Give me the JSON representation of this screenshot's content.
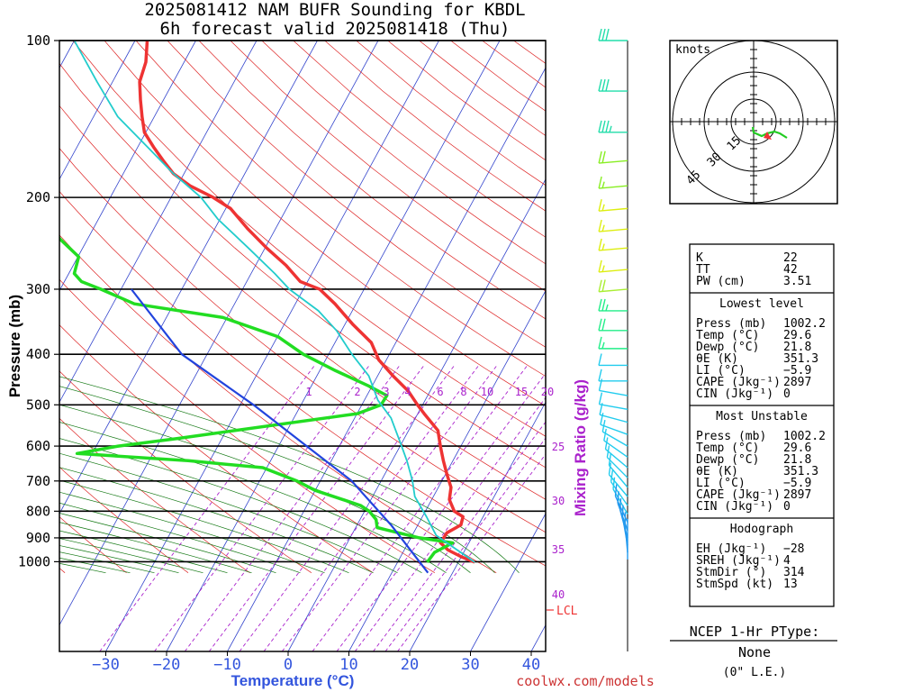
{
  "header": {
    "title_line1": "2025081412 NAM BUFR Sounding for KBDL",
    "title_line2": "6h forecast valid 2025081418 (Thu)"
  },
  "skewt": {
    "ylabel": "Pressure (mb)",
    "xlabel": "Temperature (°C)",
    "pressure_ticks": [
      100,
      200,
      300,
      400,
      500,
      600,
      700,
      800,
      900,
      1000
    ],
    "temperature_ticks": [
      -30,
      -20,
      -10,
      0,
      10,
      20,
      30,
      40
    ],
    "mixing_ratio_label": "Mixing Ratio (g/kg)",
    "mixing_ratio_values": [
      "1",
      "2",
      "3",
      "4",
      "6",
      "8",
      "10",
      "15",
      "20",
      "25",
      "30",
      "35",
      "40"
    ],
    "lcl_label": "LCL",
    "website": "coolwx.com/models"
  },
  "chart_data": {
    "type": "line",
    "x_axis": "temperature_C",
    "y_axis": "pressure_mb",
    "ylim": [
      1050,
      100
    ],
    "xlim": [
      -35,
      40
    ],
    "series": [
      {
        "key": "temperature",
        "color": "#ee3333",
        "points": [
          [
            29.6,
            1002
          ],
          [
            27,
            980
          ],
          [
            24,
            950
          ],
          [
            22,
            920
          ],
          [
            22,
            880
          ],
          [
            23.5,
            850
          ],
          [
            23,
            820
          ],
          [
            21,
            800
          ],
          [
            19,
            760
          ],
          [
            18,
            720
          ],
          [
            16,
            680
          ],
          [
            14,
            640
          ],
          [
            12,
            600
          ],
          [
            10,
            560
          ],
          [
            6,
            520
          ],
          [
            4,
            500
          ],
          [
            1,
            470
          ],
          [
            -3,
            440
          ],
          [
            -7,
            410
          ],
          [
            -10,
            380
          ],
          [
            -15,
            350
          ],
          [
            -20,
            320
          ],
          [
            -24,
            300
          ],
          [
            -28,
            290
          ],
          [
            -32,
            270
          ],
          [
            -37,
            250
          ],
          [
            -42,
            230
          ],
          [
            -47,
            210
          ],
          [
            -51,
            200
          ],
          [
            -56,
            190
          ],
          [
            -60,
            180
          ],
          [
            -63,
            170
          ],
          [
            -66,
            160
          ],
          [
            -69,
            150
          ],
          [
            -71,
            140
          ],
          [
            -73,
            130
          ],
          [
            -75,
            120
          ],
          [
            -76,
            110
          ],
          [
            -78,
            100
          ]
        ]
      },
      {
        "key": "dewpoint",
        "color": "#22dd22",
        "points": [
          [
            21.8,
            1002
          ],
          [
            22,
            960
          ],
          [
            24,
            920
          ],
          [
            18,
            900
          ],
          [
            12,
            870
          ],
          [
            10,
            860
          ],
          [
            9,
            830
          ],
          [
            7,
            800
          ],
          [
            5,
            780
          ],
          [
            -4,
            730
          ],
          [
            -8,
            700
          ],
          [
            -15,
            660
          ],
          [
            -28,
            640
          ],
          [
            -47,
            620
          ],
          [
            -41,
            600
          ],
          [
            -32,
            580
          ],
          [
            -5,
            520
          ],
          [
            -2,
            500
          ],
          [
            -2,
            480
          ],
          [
            -6,
            460
          ],
          [
            -13,
            430
          ],
          [
            -20,
            400
          ],
          [
            -26,
            370
          ],
          [
            -37,
            340
          ],
          [
            -53,
            320
          ],
          [
            -60,
            300
          ],
          [
            -64,
            290
          ],
          [
            -66,
            280
          ],
          [
            -67,
            260
          ],
          [
            -72,
            240
          ],
          [
            -76,
            220
          ],
          [
            -82,
            210
          ],
          [
            -86,
            200
          ],
          [
            -90,
            190
          ],
          [
            -96,
            180
          ],
          [
            -98,
            160
          ]
        ]
      },
      {
        "key": "parcel",
        "color": "#22cccc",
        "points": [
          [
            29.6,
            1002
          ],
          [
            20.5,
            890
          ],
          [
            17,
            820
          ],
          [
            13,
            750
          ],
          [
            11,
            700
          ],
          [
            8,
            640
          ],
          [
            5,
            590
          ],
          [
            1,
            530
          ],
          [
            -3,
            490
          ],
          [
            -7,
            440
          ],
          [
            -12,
            400
          ],
          [
            -17,
            360
          ],
          [
            -22,
            330
          ],
          [
            -29,
            300
          ],
          [
            -33,
            280
          ],
          [
            -40,
            250
          ],
          [
            -48,
            220
          ],
          [
            -53,
            200
          ],
          [
            -60,
            180
          ],
          [
            -67,
            160
          ],
          [
            -75,
            140
          ],
          [
            -82,
            120
          ],
          [
            -90,
            100
          ]
        ]
      },
      {
        "key": "wetbulb",
        "color": "#2244dd",
        "points": [
          [
            23,
            1050
          ],
          [
            12,
            850
          ],
          [
            1,
            700
          ],
          [
            -10,
            600
          ],
          [
            -23,
            500
          ],
          [
            -40,
            400
          ],
          [
            -55,
            300
          ]
        ]
      }
    ],
    "winds_kt": [
      {
        "p": 100,
        "spd": 30,
        "dir": 270
      },
      {
        "p": 125,
        "spd": 30,
        "dir": 270
      },
      {
        "p": 150,
        "spd": 35,
        "dir": 270
      },
      {
        "p": 170,
        "spd": 20,
        "dir": 265
      },
      {
        "p": 190,
        "spd": 15,
        "dir": 265
      },
      {
        "p": 210,
        "spd": 15,
        "dir": 265
      },
      {
        "p": 230,
        "spd": 15,
        "dir": 265
      },
      {
        "p": 250,
        "spd": 15,
        "dir": 265
      },
      {
        "p": 275,
        "spd": 15,
        "dir": 265
      },
      {
        "p": 300,
        "spd": 20,
        "dir": 265
      },
      {
        "p": 330,
        "spd": 25,
        "dir": 270
      },
      {
        "p": 360,
        "spd": 20,
        "dir": 270
      },
      {
        "p": 390,
        "spd": 15,
        "dir": 270
      },
      {
        "p": 420,
        "spd": 10,
        "dir": 270
      },
      {
        "p": 450,
        "spd": 10,
        "dir": 270
      },
      {
        "p": 480,
        "spd": 10,
        "dir": 280
      },
      {
        "p": 510,
        "spd": 10,
        "dir": 280
      },
      {
        "p": 540,
        "spd": 10,
        "dir": 285
      },
      {
        "p": 570,
        "spd": 10,
        "dir": 290
      },
      {
        "p": 600,
        "spd": 10,
        "dir": 300
      },
      {
        "p": 630,
        "spd": 10,
        "dir": 305
      },
      {
        "p": 660,
        "spd": 10,
        "dir": 310
      },
      {
        "p": 690,
        "spd": 10,
        "dir": 315
      },
      {
        "p": 720,
        "spd": 10,
        "dir": 320
      },
      {
        "p": 750,
        "spd": 10,
        "dir": 320
      },
      {
        "p": 780,
        "spd": 10,
        "dir": 325
      },
      {
        "p": 810,
        "spd": 10,
        "dir": 330
      },
      {
        "p": 840,
        "spd": 10,
        "dir": 335
      },
      {
        "p": 870,
        "spd": 10,
        "dir": 340
      },
      {
        "p": 900,
        "spd": 10,
        "dir": 345
      },
      {
        "p": 930,
        "spd": 10,
        "dir": 350
      },
      {
        "p": 960,
        "spd": 10,
        "dir": 355
      },
      {
        "p": 990,
        "spd": 10,
        "dir": 0
      }
    ]
  },
  "hodograph": {
    "units_label": "knots",
    "ring_labels": [
      "15",
      "30",
      "45"
    ],
    "trace_color": "#22cc22",
    "storm_color": "#ee3333"
  },
  "indices": {
    "top": [
      {
        "label": "K",
        "value": "22"
      },
      {
        "label": "TT",
        "value": "42"
      },
      {
        "label": "PW (cm)",
        "value": "3.51"
      }
    ],
    "lowest_title": "Lowest level",
    "lowest": [
      {
        "label": "Press (mb)",
        "value": "1002.2"
      },
      {
        "label": "Temp (°C)",
        "value": "29.6"
      },
      {
        "label": "Dewp (°C)",
        "value": "21.8"
      },
      {
        "label": "θE (K)",
        "value": "351.3"
      },
      {
        "label": "LI (°C)",
        "value": "−5.9"
      },
      {
        "label": "CAPE (Jkg⁻¹)",
        "value": "2897"
      },
      {
        "label": "CIN (Jkg⁻¹)",
        "value": "0"
      }
    ],
    "unstable_title": "Most Unstable",
    "unstable": [
      {
        "label": "Press (mb)",
        "value": "1002.2"
      },
      {
        "label": "Temp (°C)",
        "value": "29.6"
      },
      {
        "label": "Dewp (°C)",
        "value": "21.8"
      },
      {
        "label": "θE (K)",
        "value": "351.3"
      },
      {
        "label": "LI (°C)",
        "value": "−5.9"
      },
      {
        "label": "CAPE (Jkg⁻¹)",
        "value": "2897"
      },
      {
        "label": "CIN (Jkg⁻¹)",
        "value": "0"
      }
    ],
    "hodo_title": "Hodograph",
    "hodo": [
      {
        "label": "EH (Jkg⁻¹)",
        "value": "−28"
      },
      {
        "label": "SREH (Jkg⁻¹)",
        "value": "4"
      },
      {
        "label": "StmDir (°)",
        "value": "314"
      },
      {
        "label": "StmSpd (kt)",
        "value": "13"
      }
    ]
  },
  "ptype": {
    "title": "NCEP 1-Hr PType:",
    "value": "None",
    "sub": "(0\" L.E.)"
  },
  "colors": {
    "isotherm": "#3344cc",
    "dry_adiabat": "#dd2222",
    "moist_adiabat": "#117711",
    "mixing_ratio": "#aa22cc",
    "frame": "#000000",
    "axis_label": "#3355dd"
  }
}
